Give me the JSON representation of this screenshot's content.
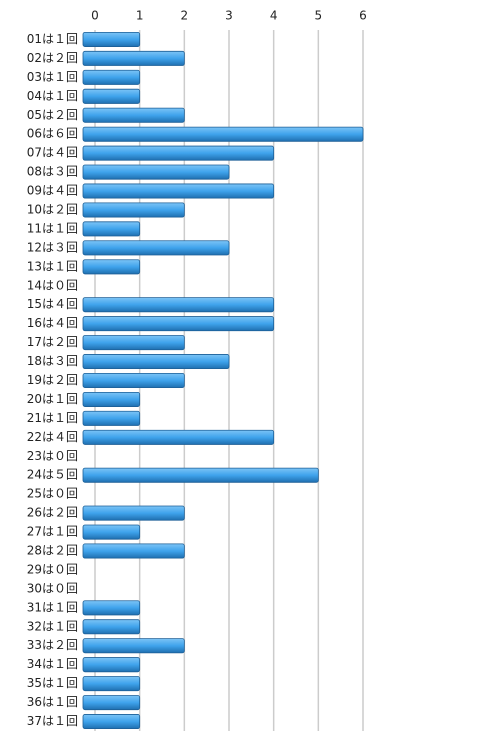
{
  "chart_data": {
    "type": "bar",
    "orientation": "horizontal",
    "categories": [
      "01は１回",
      "02は２回",
      "03は１回",
      "04は１回",
      "05は２回",
      "06は６回",
      "07は４回",
      "08は３回",
      "09は４回",
      "10は２回",
      "11は１回",
      "12は３回",
      "13は１回",
      "14は０回",
      "15は４回",
      "16は４回",
      "17は２回",
      "18は３回",
      "19は２回",
      "20は１回",
      "21は１回",
      "22は４回",
      "23は０回",
      "24は５回",
      "25は０回",
      "26は２回",
      "27は１回",
      "28は２回",
      "29は０回",
      "30は０回",
      "31は１回",
      "32は１回",
      "33は２回",
      "34は１回",
      "35は１回",
      "36は１回",
      "37は１回"
    ],
    "values": [
      1,
      2,
      1,
      1,
      2,
      6,
      4,
      3,
      4,
      2,
      1,
      3,
      1,
      0,
      4,
      4,
      2,
      3,
      2,
      1,
      1,
      4,
      0,
      5,
      0,
      2,
      1,
      2,
      0,
      0,
      1,
      1,
      2,
      1,
      1,
      1,
      1
    ],
    "color": "#3fa3ec",
    "xlim": [
      0,
      6
    ],
    "xticks": [
      0,
      1,
      2,
      3,
      4,
      5,
      6
    ],
    "grid": true
  }
}
